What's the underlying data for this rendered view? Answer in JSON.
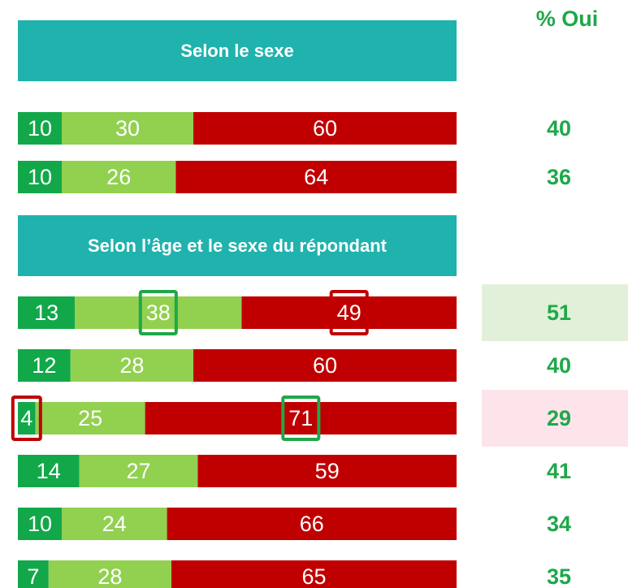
{
  "column_title": "% Oui",
  "chart_data": [
    {
      "type": "stacked-bar",
      "title": "Selon le sexe",
      "xlim": [
        0,
        100
      ],
      "header_color": "#20b2ad",
      "series": [
        {
          "color": "#12a84a",
          "values": [
            10,
            10
          ]
        },
        {
          "color": "#92d050",
          "values": [
            30,
            26
          ]
        },
        {
          "color": "#c00000",
          "values": [
            60,
            64
          ]
        }
      ],
      "oui": [
        40,
        36
      ]
    },
    {
      "type": "stacked-bar",
      "title": "Selon l’âge et le sexe du répondant",
      "xlim": [
        0,
        100
      ],
      "header_color": "#20b2ad",
      "series": [
        {
          "color": "#12a84a",
          "values": [
            13,
            12,
            4,
            14,
            10,
            7
          ]
        },
        {
          "color": "#92d050",
          "values": [
            38,
            28,
            25,
            27,
            24,
            28
          ]
        },
        {
          "color": "#c00000",
          "values": [
            49,
            60,
            71,
            59,
            66,
            65
          ]
        }
      ],
      "oui": [
        51,
        40,
        29,
        41,
        34,
        35
      ],
      "oui_backgrounds": [
        {
          "row": 0,
          "color": "#e2f0d9"
        },
        {
          "row": 2,
          "color": "#fce4ea"
        }
      ],
      "label_highlights": [
        {
          "series": 1,
          "row": 0,
          "color": "#1ea84a"
        },
        {
          "series": 2,
          "row": 0,
          "color": "#c00000"
        },
        {
          "series": 0,
          "row": 2,
          "color": "#c00000"
        },
        {
          "series": 2,
          "row": 2,
          "color": "#1ea84a"
        }
      ]
    }
  ]
}
